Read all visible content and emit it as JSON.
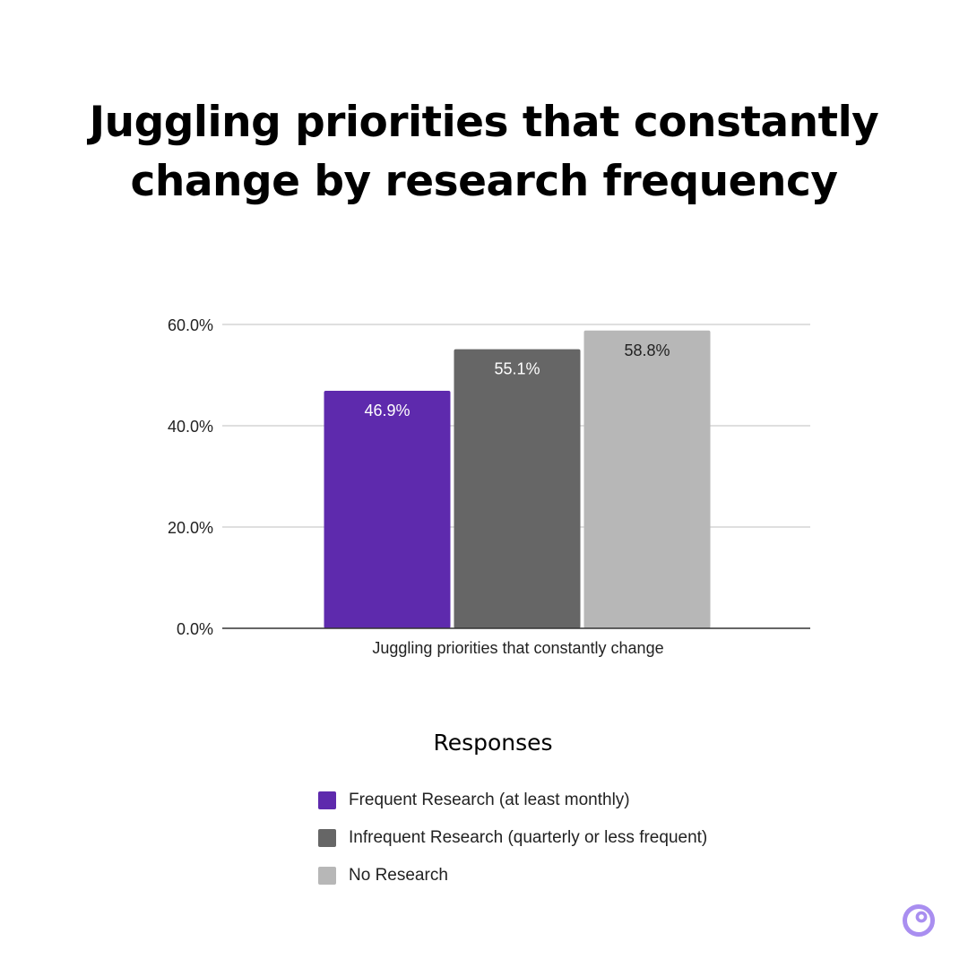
{
  "title_lines": [
    "Juggling priorities that constantly",
    "change by research frequency"
  ],
  "chart_data": {
    "type": "bar",
    "title": "Juggling priorities that constantly change by research frequency",
    "categories": [
      "Juggling priorities that constantly change"
    ],
    "series": [
      {
        "name": "Frequent Research (at least monthly)",
        "values": [
          46.9
        ],
        "label": "46.9%",
        "color": "#5e2aad",
        "label_color": "#ffffff"
      },
      {
        "name": "Infrequent Research (quarterly or less frequent)",
        "values": [
          55.1
        ],
        "label": "55.1%",
        "color": "#666666",
        "label_color": "#ffffff"
      },
      {
        "name": "No Research",
        "values": [
          58.8
        ],
        "label": "58.8%",
        "color": "#b7b7b7",
        "label_color": "#222222"
      }
    ],
    "ylim": [
      0,
      60
    ],
    "yticks": [
      0,
      20,
      40,
      60
    ],
    "ytick_labels": [
      "0.0%",
      "20.0%",
      "40.0%",
      "60.0%"
    ],
    "xlabel": "",
    "ylabel": "",
    "grid": true,
    "legend": {
      "title": "Responses",
      "placement": "bottom"
    }
  },
  "logo": {
    "name": "brand-logo-icon",
    "color": "#a98ef0"
  }
}
